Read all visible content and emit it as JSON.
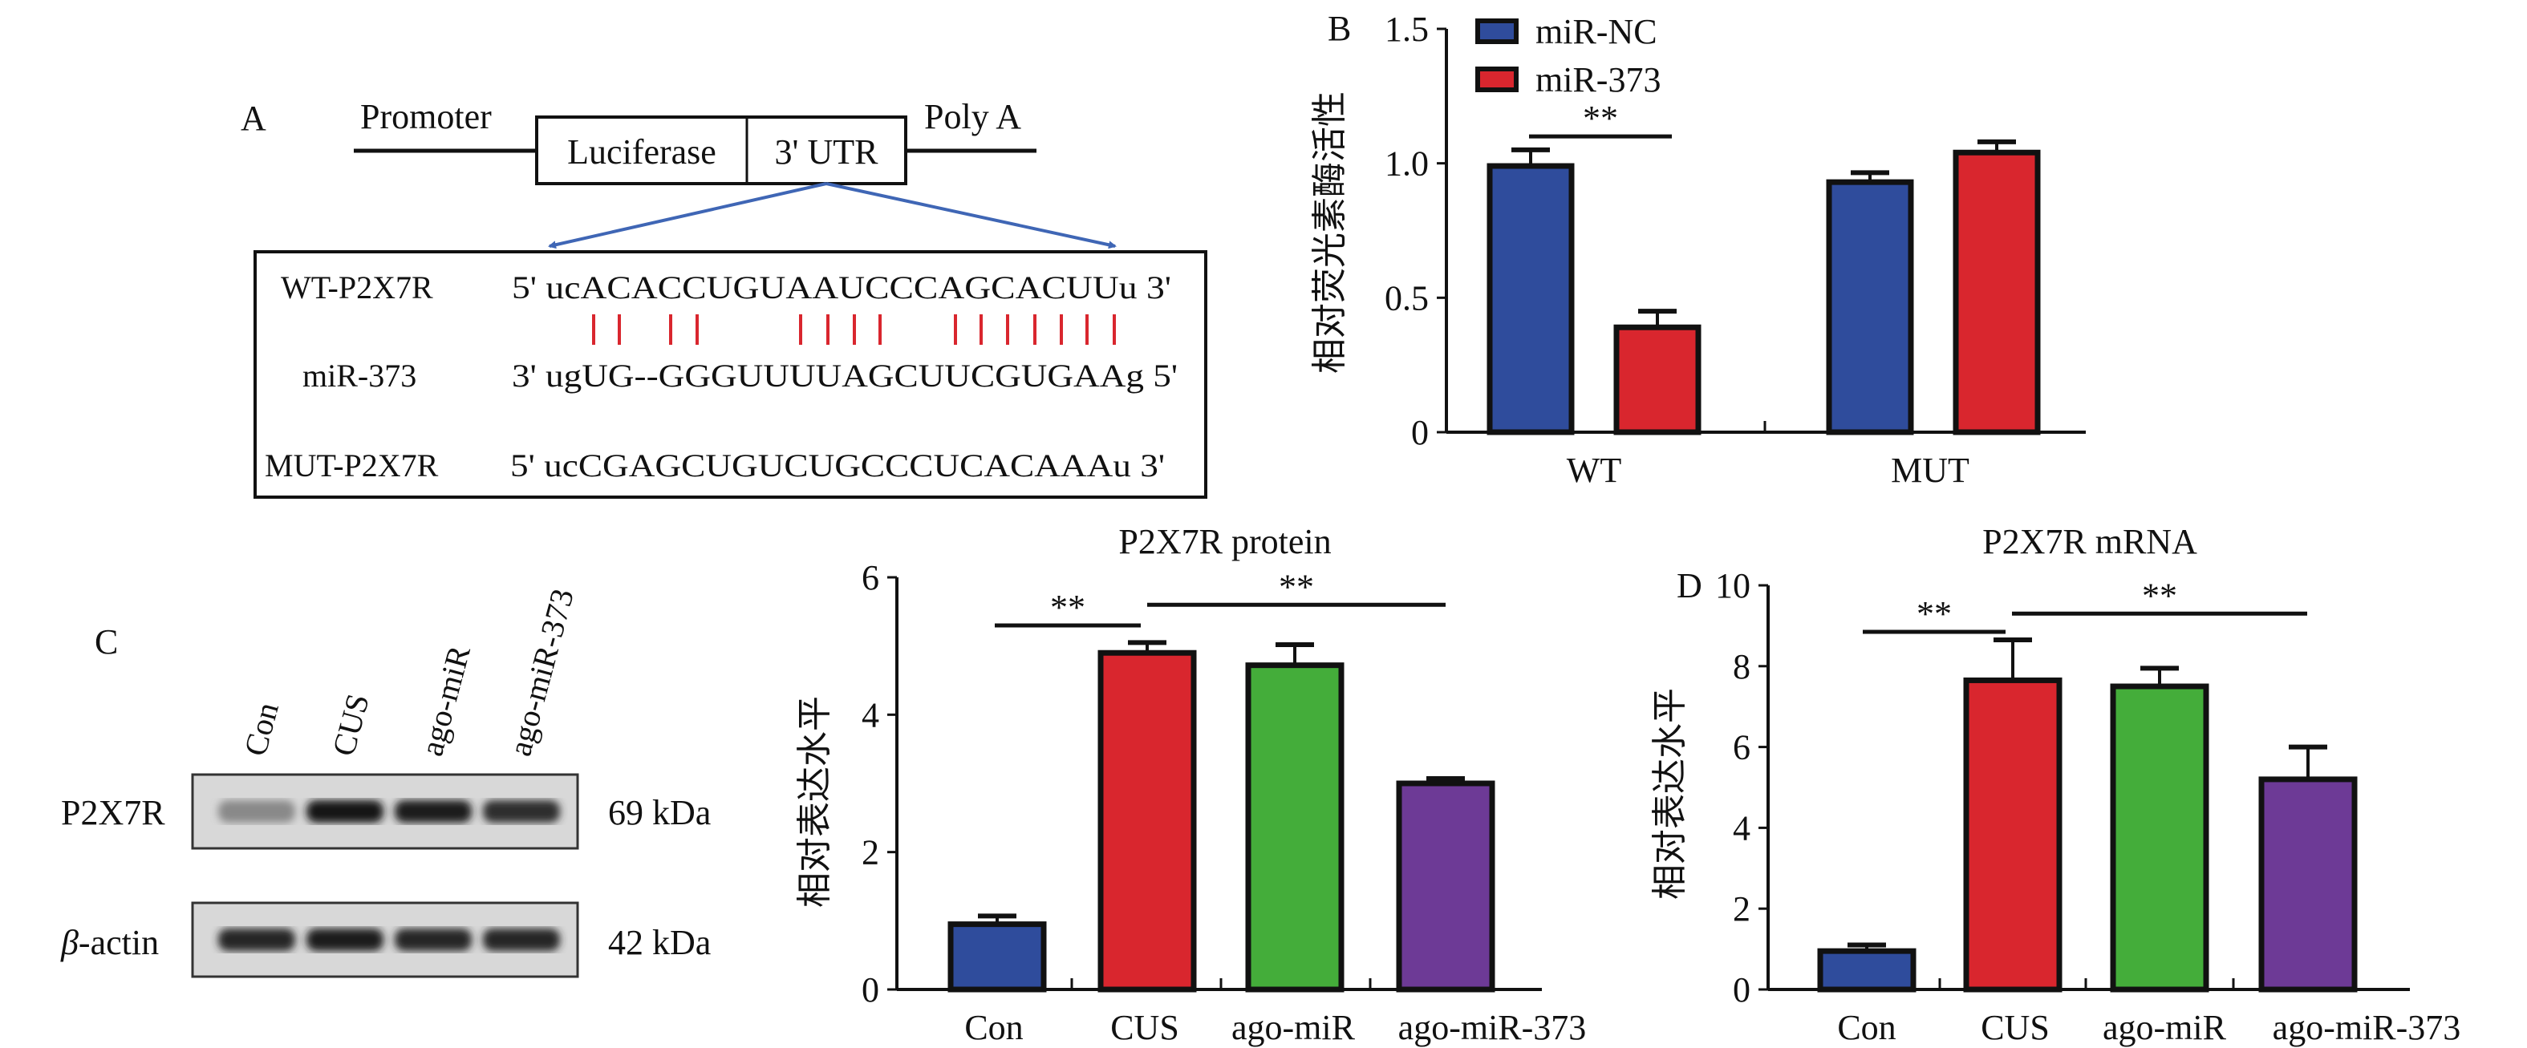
{
  "panel_a": {
    "label": "A",
    "promoter": "Promoter",
    "luciferase": "Luciferase",
    "utr": "3' UTR",
    "polya": "Poly A",
    "rows": [
      {
        "name": "WT-P2X7R",
        "seq": "5' ucACACCUGUAAUCCCAGCACUUu 3'"
      },
      {
        "name": "miR-373",
        "seq": "3' ugUG--GGGUUUUAGCUUCGUGAAg 5'"
      },
      {
        "name": "MUT-P2X7R",
        "seq": "5' ucCGAGCUGUCUGCCCUCACAAAu 3'"
      }
    ],
    "pair_count": 15,
    "colors": {
      "pairs": "#d9262e",
      "arrows": "#3f66b5"
    }
  },
  "panel_c_blot": {
    "label": "C",
    "lanes": [
      "Con",
      "CUS",
      "ago-miR",
      "ago-miR-373"
    ],
    "rows": [
      {
        "name": "P2X7R",
        "italic_prefix": "",
        "size": "69 kDa",
        "intensity": [
          0.35,
          1.0,
          0.95,
          0.85
        ]
      },
      {
        "name": "-actin",
        "italic_prefix": "β",
        "size": "42 kDa",
        "intensity": [
          0.9,
          0.95,
          0.9,
          0.9
        ]
      }
    ]
  },
  "chart_data": [
    {
      "id": "B",
      "type": "bar",
      "panel_label": "B",
      "title": "",
      "ylabel": "相对荧光素酶活性",
      "categories": [
        "WT",
        "MUT"
      ],
      "ylim": [
        0,
        1.5
      ],
      "yticks": [
        "0",
        "0.5",
        "1.0",
        "1.5"
      ],
      "ytick_values": [
        0,
        0.5,
        1.0,
        1.5
      ],
      "legend": "top-left",
      "series": [
        {
          "name": "miR-NC",
          "color": "#2f4c9c",
          "values": [
            0.99,
            0.93
          ],
          "errors": [
            0.06,
            0.035
          ]
        },
        {
          "name": "miR-373",
          "color": "#d9262e",
          "values": [
            0.39,
            1.04
          ],
          "errors": [
            0.06,
            0.04
          ]
        }
      ],
      "significance": [
        {
          "label": "**",
          "from": "WT miR-NC",
          "to": "WT miR-373",
          "y": 1.1
        }
      ]
    },
    {
      "id": "C",
      "type": "bar",
      "panel_label": "",
      "title": "P2X7R protein",
      "ylabel": "相对表达水平",
      "categories": [
        "Con",
        "CUS",
        "ago-miR",
        "ago-miR-373"
      ],
      "colors": [
        "#2f4c9c",
        "#d9262e",
        "#44ad3a",
        "#6d3a96"
      ],
      "values": [
        0.95,
        4.9,
        4.72,
        3.0
      ],
      "errors": [
        0.12,
        0.15,
        0.3,
        0.07
      ],
      "ylim": [
        0,
        6
      ],
      "yticks": [
        "0",
        "2",
        "4",
        "6"
      ],
      "ytick_values": [
        0,
        2,
        4,
        6
      ],
      "significance": [
        {
          "label": "**",
          "from": 0,
          "to": 1,
          "y": 5.3
        },
        {
          "label": "**",
          "from": 1,
          "to": 3,
          "y": 5.6
        }
      ]
    },
    {
      "id": "D",
      "type": "bar",
      "panel_label": "D",
      "title": "P2X7R mRNA",
      "ylabel": "相对表达水平",
      "categories": [
        "Con",
        "CUS",
        "ago-miR",
        "ago-miR-373"
      ],
      "colors": [
        "#2f4c9c",
        "#d9262e",
        "#44ad3a",
        "#6d3a96"
      ],
      "values": [
        0.95,
        7.65,
        7.5,
        5.2
      ],
      "errors": [
        0.15,
        1.0,
        0.45,
        0.8
      ],
      "ylim": [
        0,
        10
      ],
      "yticks": [
        "0",
        "2",
        "4",
        "6",
        "8",
        "10"
      ],
      "ytick_values": [
        0,
        2,
        4,
        6,
        8,
        10
      ],
      "significance": [
        {
          "label": "**",
          "from": 0,
          "to": 1,
          "y": 8.85
        },
        {
          "label": "**",
          "from": 1,
          "to": 3,
          "y": 9.3
        }
      ]
    }
  ]
}
